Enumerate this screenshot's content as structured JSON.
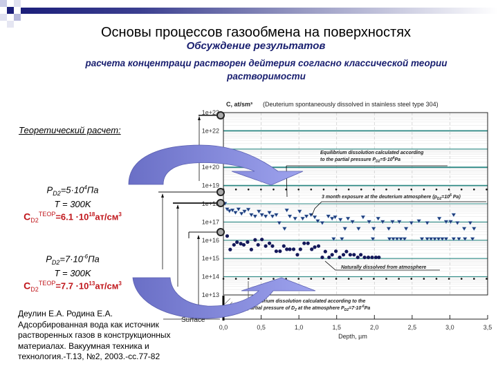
{
  "header": {
    "title": "Основы процессов газообмена на поверхностях",
    "subtitle": "Обсуждение результатов",
    "subtitle_line2": "расчета концентраци растворен  дейтерия согласно классической теории",
    "subtitle_line3": "растворимости"
  },
  "theory": {
    "heading": "Теоретический расчет:",
    "case1": {
      "pressure": "P",
      "pressure_sub": "D2",
      "pressure_val": "=5·10",
      "pressure_exp": "4",
      "pressure_unit": "Па",
      "temp": "T = 300K",
      "c": "C",
      "c_sub": "D2",
      "c_sup": "ТЕОР",
      "c_val": "=6.1 ·10",
      "c_exp": "18",
      "c_unit": "ат/см",
      "c_unit_exp": "3"
    },
    "case2": {
      "pressure": "P",
      "pressure_sub": "D2",
      "pressure_val": "=7·10",
      "pressure_exp": "-6",
      "pressure_unit": "Па",
      "temp": "T = 300K",
      "c": "C",
      "c_sub": "D2",
      "c_sup": "ТЕОР",
      "c_val": "=7.7 ·10",
      "c_exp": "13",
      "c_unit": "ат/см",
      "c_unit_exp": "3"
    }
  },
  "reference": {
    "lines": [
      "Деулин Е.А. Родина Е.А.",
      "Адсорбированная вода как источник",
      "растворенных газов в конструкционных",
      "материалах. Вакуумная техника и",
      "технология.-Т.13, №2, 2003.-сс.77-82"
    ]
  },
  "diagram": {
    "surface_label": "Surface"
  },
  "colors": {
    "navy": "#1a2070",
    "red": "#c0161b",
    "arrow": "#7a80d8",
    "grid": "#2e8a86",
    "points": "#1f3c7a",
    "circles": "#14185a"
  },
  "chart_data": {
    "type": "scatter",
    "title": "C, at/sm³",
    "title_note": "(Deuterium spontaneously dissolved in stainless steel type 304)",
    "xlabel": "Depth, µm",
    "ylabel": "",
    "xlim": [
      0,
      3.5
    ],
    "ylim": [
      10000000000000.0,
      1e+23
    ],
    "yscale": "log",
    "xticks": [
      "0,0",
      "0,5",
      "1,0",
      "1,5",
      "2,0",
      "2,5",
      "3,0",
      "3,5"
    ],
    "yticks": [
      "1e+23",
      "1e+22",
      "1e+21",
      "1e+20",
      "1e+19",
      "1e+18",
      "1e+17",
      "1e+16",
      "1e+15",
      "1e+14",
      "1e+13"
    ],
    "grid": true,
    "reference_lines": [
      {
        "value": 6.1e+18,
        "style": "dotted"
      },
      {
        "value": 77000000000000.0,
        "style": "dotted"
      }
    ],
    "annotations": [
      {
        "line1": "Equilibrium dissolution calculated according",
        "line2": "to the partial pressure P",
        "sub": "D2",
        "tail": "=5·10",
        "exp": "4",
        "unit": "Pa"
      },
      {
        "line1": "3 month exposure at the deuterium atmosphere (p",
        "sub": "D2",
        "tail": "=10",
        "exp": "5",
        "unit": " Pa)"
      },
      {
        "line1": "Naturally dissolved from atmosphere"
      },
      {
        "line1": "Equilibrium dissolution calculated according to the",
        "line2": "partial pressure of D",
        "sub2": "2",
        "line2b": " at the atmosphere P",
        "sub": "D2",
        "tail": "=7·10",
        "exp": "-6",
        "unit": "Pa"
      }
    ],
    "series": [
      {
        "marker": "triangle-down",
        "x": [
          0.02,
          0.05,
          0.08,
          0.12,
          0.16,
          0.2,
          0.24,
          0.28,
          0.33,
          0.37,
          0.42,
          0.47,
          0.51,
          0.56,
          0.61,
          0.65,
          0.7,
          0.74,
          0.81,
          0.84,
          0.88,
          0.95,
          1.01,
          1.05,
          1.1,
          1.16,
          1.21,
          1.25,
          1.31,
          1.39,
          1.44,
          1.48,
          1.55,
          1.61,
          1.65,
          1.71,
          1.79,
          1.85,
          1.93,
          1.99,
          2.05,
          2.11,
          2.19,
          2.24,
          2.33,
          2.42,
          2.49,
          2.59,
          2.7,
          2.86,
          2.95,
          3.01,
          3.05,
          3.1,
          3.19,
          3.27,
          3.32,
          1.46,
          1.57,
          1.98,
          2.2,
          2.25,
          2.3,
          2.35,
          2.4,
          2.63,
          2.7,
          2.75,
          2.8,
          2.85,
          2.9,
          2.95,
          3.05,
          3.12,
          3.2,
          3.3
        ],
        "y": [
          1e+18,
          4.9e+17,
          3.9e+17,
          4.3e+17,
          3.2e+17,
          4.9e+17,
          2.8e+17,
          3.7e+17,
          4.7e+17,
          2.4e+17,
          2e+17,
          3.7e+17,
          2.4e+17,
          2e+17,
          3.2e+17,
          2e+17,
          2.4e+17,
          8.7e+16,
          4.2e+16,
          4.3e+17,
          2e+17,
          1.5e+17,
          3.7e+17,
          1.5e+17,
          2e+17,
          2.4e+17,
          1.8e+17,
          1.1e+17,
          8.7e+16,
          2e+17,
          1.5e+17,
          1.8e+17,
          1.3e+17,
          4.2e+16,
          1.5e+17,
          1e+17,
          4.2e+16,
          1.8e+17,
          1e+17,
          4.2e+16,
          1.5e+17,
          1e+17,
          4.2e+16,
          1e+17,
          1e+17,
          4.2e+16,
          8.7e+16,
          1.1e+17,
          8.7e+16,
          1.5e+17,
          1e+17,
          1e+17,
          2.4e+17,
          8.7e+16,
          4.2e+16,
          8.7e+16,
          4.2e+16,
          1.15e+16,
          1.15e+16,
          1.15e+16,
          1.15e+16,
          1.15e+16,
          1.15e+16,
          1.15e+16,
          1.15e+16,
          1.15e+16,
          1.15e+16,
          1.15e+16,
          1.15e+16,
          1.15e+16,
          1.15e+16,
          1.15e+16,
          1.15e+16,
          1.15e+16,
          1.15e+16,
          1.15e+16
        ]
      },
      {
        "marker": "circle",
        "x": [
          0.05,
          0.09,
          0.14,
          0.18,
          0.23,
          0.27,
          0.32,
          0.37,
          0.42,
          0.46,
          0.51,
          0.56,
          0.61,
          0.65,
          0.7,
          0.75,
          0.8,
          0.84,
          0.88,
          0.93,
          0.98,
          1.02,
          1.07,
          1.12,
          1.17,
          1.21,
          1.26,
          1.31,
          1.35,
          1.4,
          1.44,
          1.49,
          1.54,
          1.59,
          1.63,
          1.68,
          1.73,
          1.78,
          1.82,
          1.87,
          1.92,
          1.97,
          2.02,
          2.06
        ],
        "y": [
          1.7e+16,
          3100000000000000.0,
          5600000000000000.0,
          7800000000000000.0,
          6500000000000000.0,
          5600000000000000.0,
          8000000000000000.0,
          3100000000000000.0,
          1.05e+16,
          5600000000000000.0,
          1.1e+16,
          4800000000000000.0,
          6800000000000000.0,
          4800000000000000.0,
          2500000000000000.0,
          2500000000000000.0,
          4800000000000000.0,
          3200000000000000.0,
          3200000000000000.0,
          3200000000000000.0,
          1600000000000000.0,
          3200000000000000.0,
          6800000000000000.0,
          6800000000000000.0,
          3200000000000000.0,
          4200000000000000.0,
          4800000000000000.0,
          1150000000000000.0,
          2400000000000000.0,
          1150000000000000.0,
          1600000000000000.0,
          2500000000000000.0,
          1150000000000000.0,
          1600000000000000.0,
          2400000000000000.0,
          1600000000000000.0,
          1600000000000000.0,
          1150000000000000.0,
          1600000000000000.0,
          1150000000000000.0,
          1150000000000000.0,
          1150000000000000.0,
          1150000000000000.0,
          1150000000000000.0
        ]
      }
    ]
  }
}
